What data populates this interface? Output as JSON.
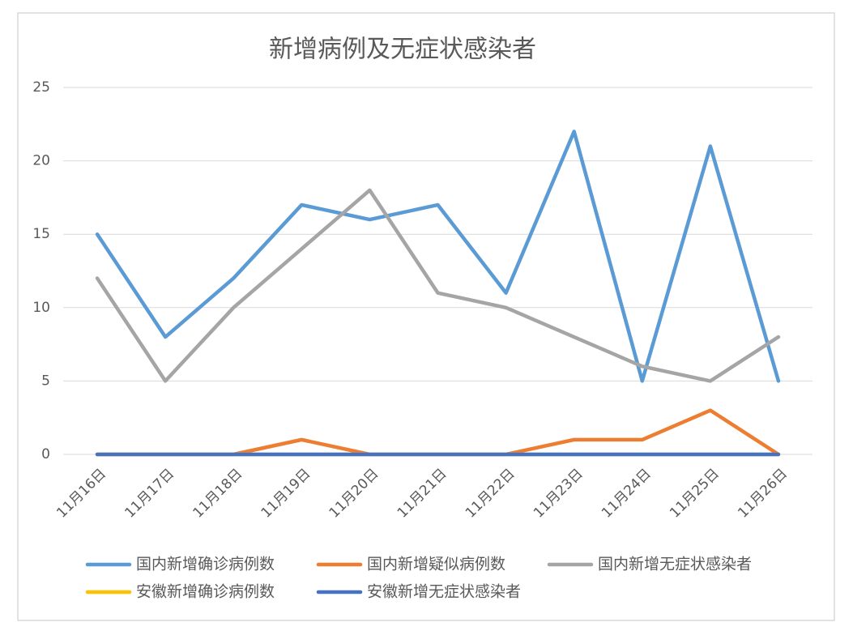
{
  "chart_data": {
    "type": "line",
    "title": "新增病例及无症状感染者",
    "categories": [
      "11月16日",
      "11月17日",
      "11月18日",
      "11月19日",
      "11月20日",
      "11月21日",
      "11月22日",
      "11月23日",
      "11月24日",
      "11月25日",
      "11月26日"
    ],
    "series": [
      {
        "name": "国内新增确诊病例数",
        "color": "#5b9bd5",
        "values": [
          15,
          8,
          12,
          17,
          16,
          17,
          11,
          22,
          5,
          21,
          5
        ]
      },
      {
        "name": "国内新增疑似病例数",
        "color": "#ed7d31",
        "values": [
          0,
          0,
          0,
          1,
          0,
          0,
          0,
          1,
          1,
          3,
          0
        ]
      },
      {
        "name": "国内新增无症状感染者",
        "color": "#a5a5a5",
        "values": [
          12,
          5,
          10,
          14,
          18,
          11,
          10,
          8,
          6,
          5,
          8
        ]
      },
      {
        "name": "安徽新增确诊病例数",
        "color": "#ffc000",
        "values": [
          0,
          0,
          0,
          0,
          0,
          0,
          0,
          0,
          0,
          0,
          0
        ]
      },
      {
        "name": "安徽新增无症状感染者",
        "color": "#4472c4",
        "values": [
          0,
          0,
          0,
          0,
          0,
          0,
          0,
          0,
          0,
          0,
          0
        ]
      }
    ],
    "ylim": [
      0,
      25
    ],
    "yticks": [
      0,
      5,
      10,
      15,
      20,
      25
    ],
    "grid": true
  }
}
